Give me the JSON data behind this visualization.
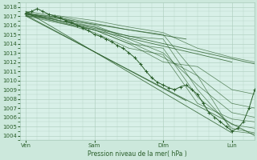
{
  "xlabel": "Pression niveau de la mer( hPa )",
  "ylim": [
    1003.5,
    1018.5
  ],
  "yticks": [
    1004,
    1005,
    1006,
    1007,
    1008,
    1009,
    1010,
    1011,
    1012,
    1013,
    1014,
    1015,
    1016,
    1017,
    1018
  ],
  "xtick_labels": [
    "Ven",
    "Sam",
    "Dim",
    "Lun"
  ],
  "xtick_pos": [
    0.0,
    24.0,
    48.0,
    72.0
  ],
  "xlim": [
    -2,
    80
  ],
  "bg_color": "#cce8dc",
  "plot_bg": "#d8f0e8",
  "line_color": "#2a5e2a",
  "grid_color": "#aaccbb",
  "envelope_upper": {
    "x": [
      0,
      24,
      48,
      72,
      80
    ],
    "y": [
      1017.5,
      1016.2,
      1015.2,
      1012.0,
      1011.8
    ]
  },
  "envelope_lower": {
    "x": [
      0,
      24,
      48,
      72,
      80
    ],
    "y": [
      1017.0,
      1014.5,
      1012.5,
      1004.2,
      1004.0
    ]
  },
  "envelope_upper2": {
    "x": [
      0,
      24,
      48,
      58,
      72,
      80
    ],
    "y": [
      1017.8,
      1016.5,
      1015.8,
      1015.5,
      1013.2,
      1012.2
    ]
  },
  "envelope_lower2": {
    "x": [
      0,
      24,
      48,
      58,
      72,
      80
    ],
    "y": [
      1016.8,
      1015.0,
      1012.0,
      1011.0,
      1004.5,
      1004.2
    ]
  },
  "straight_lines": [
    {
      "x": [
        0,
        80
      ],
      "y": [
        1017.3,
        1011.8
      ]
    },
    {
      "x": [
        0,
        80
      ],
      "y": [
        1017.0,
        1004.0
      ]
    },
    {
      "x": [
        0,
        72
      ],
      "y": [
        1017.5,
        1004.3
      ]
    },
    {
      "x": [
        0,
        72
      ],
      "y": [
        1017.2,
        1012.0
      ]
    },
    {
      "x": [
        0,
        56
      ],
      "y": [
        1017.1,
        1007.8
      ]
    },
    {
      "x": [
        0,
        56
      ],
      "y": [
        1017.3,
        1014.5
      ]
    }
  ],
  "main_x": [
    0,
    2,
    4,
    6,
    8,
    10,
    12,
    14,
    16,
    18,
    20,
    22,
    24,
    26,
    28,
    30,
    32,
    34,
    36,
    38,
    40,
    42,
    44,
    46,
    48,
    50,
    52,
    54,
    56,
    58,
    60,
    62,
    64,
    66,
    68,
    70,
    72,
    74,
    76,
    78,
    80
  ],
  "main_y": [
    1017.3,
    1017.5,
    1017.8,
    1017.5,
    1017.2,
    1017.0,
    1016.8,
    1016.5,
    1016.3,
    1016.0,
    1015.7,
    1015.4,
    1015.0,
    1014.8,
    1014.5,
    1014.2,
    1013.8,
    1013.5,
    1013.0,
    1012.5,
    1011.8,
    1011.0,
    1010.3,
    1009.8,
    1009.5,
    1009.2,
    1009.0,
    1009.3,
    1009.5,
    1009.0,
    1008.5,
    1007.5,
    1006.5,
    1006.0,
    1005.5,
    1005.0,
    1004.5,
    1004.8,
    1005.5,
    1007.0,
    1009.0
  ],
  "ensemble_lines": [
    {
      "x": [
        0,
        12,
        24,
        36,
        48,
        60,
        72,
        80
      ],
      "y": [
        1017.2,
        1016.9,
        1016.2,
        1015.5,
        1015.0,
        1010.5,
        1004.5,
        1004.2
      ]
    },
    {
      "x": [
        0,
        12,
        24,
        36,
        48,
        60,
        72,
        80
      ],
      "y": [
        1017.0,
        1016.7,
        1015.8,
        1014.8,
        1014.5,
        1009.0,
        1004.8,
        1004.3
      ]
    },
    {
      "x": [
        0,
        12,
        24,
        36,
        48,
        60,
        72,
        80
      ],
      "y": [
        1017.3,
        1016.5,
        1015.5,
        1014.0,
        1013.5,
        1008.2,
        1005.2,
        1004.8
      ]
    },
    {
      "x": [
        0,
        12,
        24,
        36,
        48,
        60,
        72,
        80
      ],
      "y": [
        1017.1,
        1016.3,
        1015.2,
        1013.5,
        1012.8,
        1007.5,
        1005.8,
        1005.5
      ]
    },
    {
      "x": [
        0,
        12,
        24,
        36,
        48,
        60,
        72,
        80
      ],
      "y": [
        1017.4,
        1016.8,
        1016.0,
        1014.5,
        1013.0,
        1009.5,
        1006.5,
        1006.0
      ]
    },
    {
      "x": [
        0,
        12,
        24,
        36,
        48,
        60,
        72,
        80
      ],
      "y": [
        1017.2,
        1016.5,
        1015.8,
        1014.2,
        1012.5,
        1010.5,
        1007.5,
        1007.0
      ]
    },
    {
      "x": [
        0,
        12,
        24,
        36,
        48,
        60,
        72,
        80
      ],
      "y": [
        1017.0,
        1016.2,
        1015.5,
        1014.0,
        1012.0,
        1011.5,
        1009.0,
        1008.5
      ]
    },
    {
      "x": [
        0,
        12,
        24,
        36,
        48,
        60,
        72,
        80
      ],
      "y": [
        1017.5,
        1017.0,
        1016.5,
        1015.8,
        1015.2,
        1013.5,
        1012.5,
        1012.0
      ]
    }
  ]
}
